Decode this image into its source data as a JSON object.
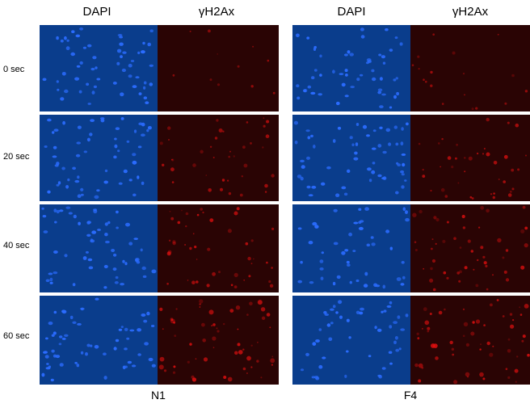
{
  "headers": {
    "left_dapi": "DAPI",
    "left_h2ax": "γH2Ax",
    "right_dapi": "DAPI",
    "right_h2ax": "γH2Ax"
  },
  "rows": [
    "0 sec",
    "20 sec",
    "40 sec",
    "60 sec"
  ],
  "groups": [
    "N1",
    "F4"
  ],
  "colors": {
    "dapi_background": "#0a3d8c",
    "dapi_nuclei": "#2b6cff",
    "h2ax_background": "#2a0404",
    "h2ax_foci": "#e01010"
  },
  "h2ax_intensity": {
    "N1": [
      0.05,
      0.45,
      0.55,
      0.75
    ],
    "F4": [
      0.15,
      0.45,
      0.6,
      0.7
    ]
  }
}
